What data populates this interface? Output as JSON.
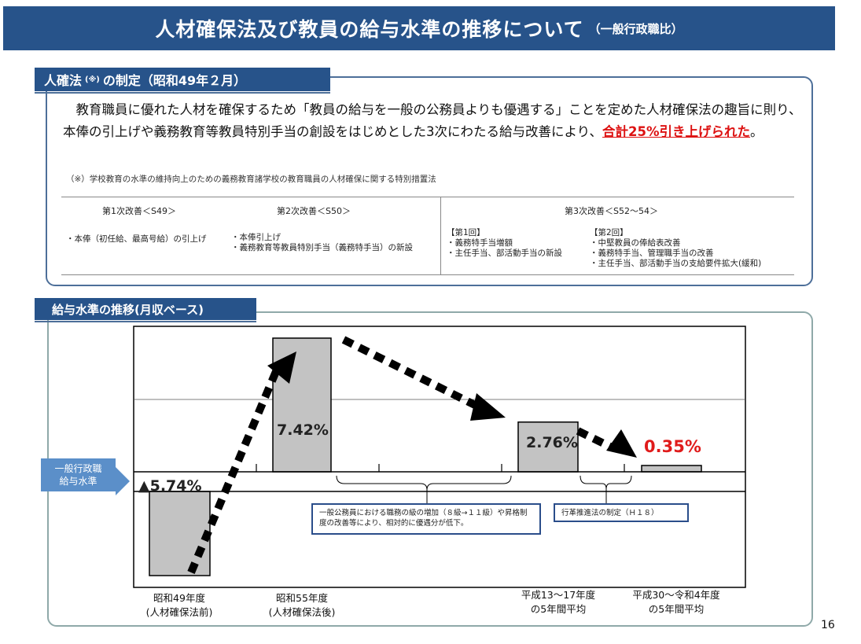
{
  "title": {
    "main": "人材確保法及び教員の給与水準の推移について",
    "sub": "（一般行政職比）"
  },
  "section1": {
    "heading": "人確法",
    "heading_note": "(※)",
    "heading_rest": "の制定（昭和49年２月）",
    "body_text": "　教育職員に優れた人材を確保するため「教員の給与を一般の公務員よりも優遇する」ことを定めた人材確保法の趣旨に則り、本俸の引上げや義務教育等教員特別手当の創設をはじめとした3次にわたる給与改善により、",
    "body_highlight": "合計25%引き上げられた",
    "body_end": "。",
    "footnote": "（※）学校教育の水準の維持向上のための義務教育諸学校の教育職員の人材確保に関する特別措置法",
    "revisions": [
      {
        "header": "第1次改善＜S49＞",
        "items": [
          "・本俸（初任給、最高号給）の引上げ"
        ]
      },
      {
        "header": "第2次改善＜S50＞",
        "items": [
          "・本俸引上げ",
          "・義務教育等教員特別手当（義務特手当）の新設"
        ]
      },
      {
        "header": "第3次改善＜S52～54＞",
        "round1_title": "【第1回】",
        "round1_items": [
          "・義務特手当増額",
          "・主任手当、部活動手当の新設"
        ],
        "round2_title": "【第2回】",
        "round2_items": [
          "・中堅教員の俸給表改善",
          "・義務特手当、管理職手当の改善",
          "・主任手当、部活動手当の支給要件拡大(緩和)"
        ]
      }
    ]
  },
  "section2": {
    "heading": "給与水準の推移(月収ベース)",
    "baseline_label": [
      "一般行政職",
      "給与水準"
    ],
    "note1": "一般公務員における職務の級の増加（８級→１１級）や昇格制度の改善等により、相対的に優遇分が低下。",
    "note2": "行革推進法の制定（Ｈ１８）"
  },
  "chart_data": {
    "type": "bar",
    "categories": [
      "昭和49年度\n(人材確保法前)",
      "昭和55年度\n(人材確保法後)",
      "平成13～17年度\nの5年間平均",
      "平成30～令和4年度\nの5年間平均"
    ],
    "values": [
      -5.74,
      7.42,
      2.76,
      0.35
    ],
    "value_labels": [
      "▲5.74%",
      "7.42%",
      "2.76%",
      "0.35%"
    ],
    "highlight_color": "#e01b1b",
    "bar_color": "#c3c3c3",
    "ylim": [
      -12,
      15
    ]
  },
  "page_number": "16"
}
